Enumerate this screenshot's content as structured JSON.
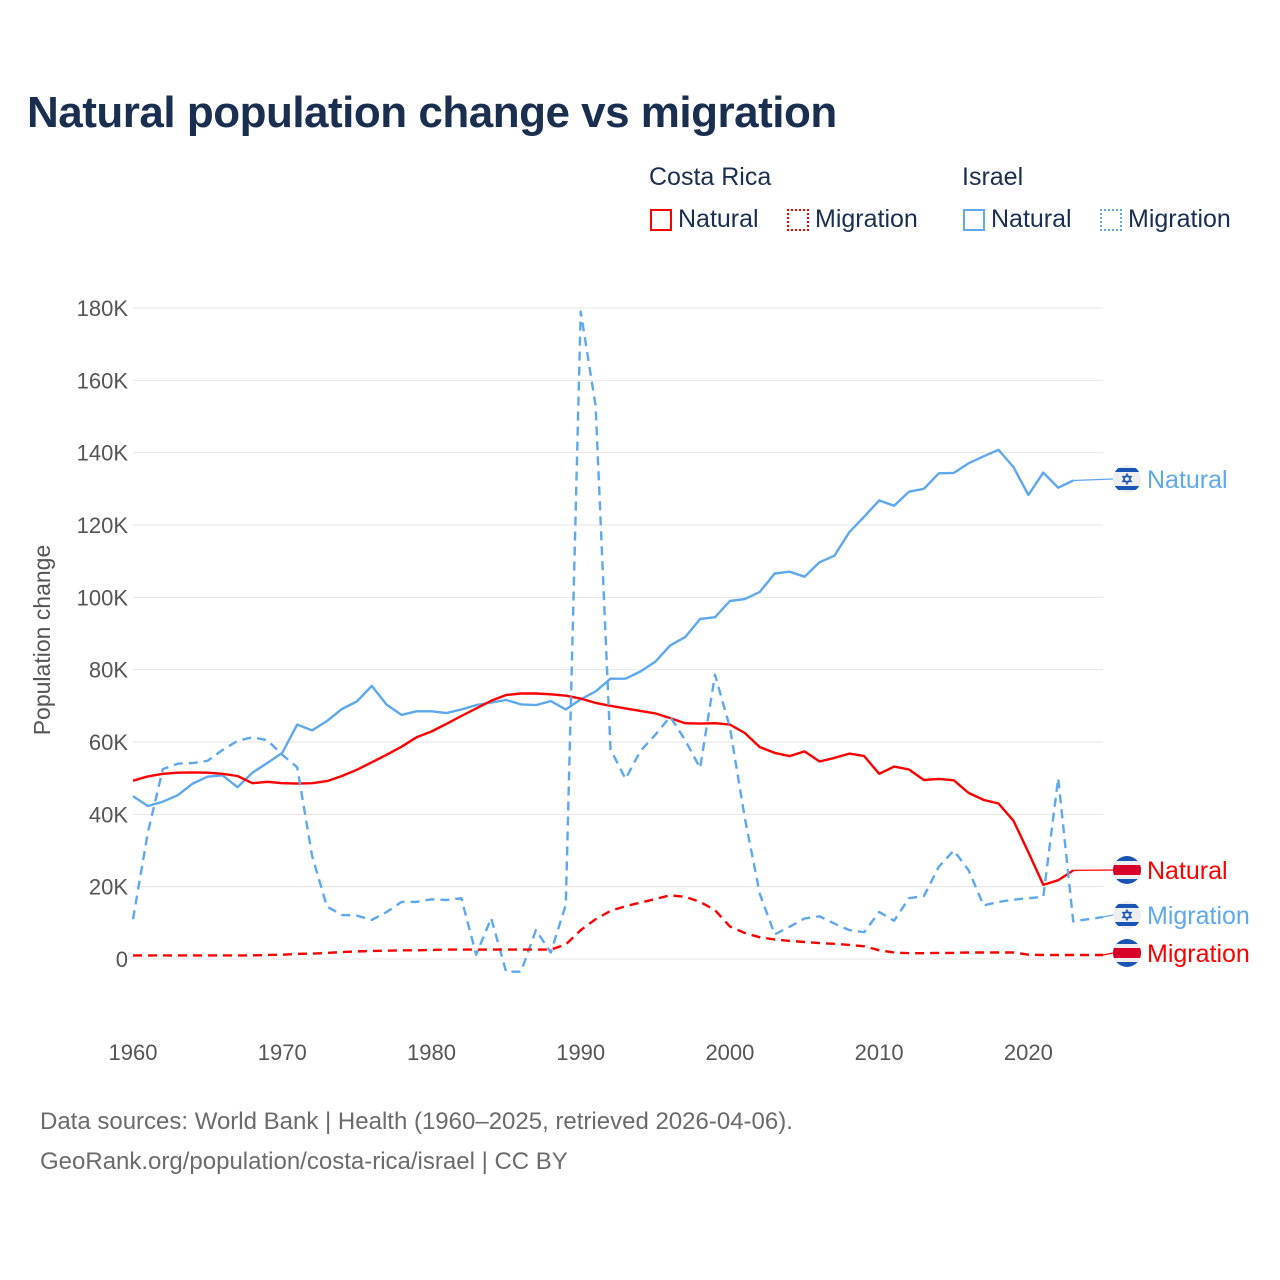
{
  "title": "Natural population change vs migration",
  "legend": {
    "groups": [
      {
        "name": "Costa Rica",
        "items": [
          "Natural",
          "Migration"
        ],
        "color": "#ff0000"
      },
      {
        "name": "Israel",
        "items": [
          "Natural",
          "Migration"
        ],
        "color": "#5ea8ee"
      }
    ]
  },
  "footer": {
    "line1": "Data sources: World Bank | Health (1960–2025, retrieved 2026-04-06).",
    "line2": "GeoRank.org/population/costa-rica/israel | CC BY"
  },
  "chart_data": {
    "type": "line",
    "title": "Natural population change vs migration",
    "xlabel": "",
    "ylabel": "Population change",
    "xlim": [
      1960,
      2025
    ],
    "ylim": [
      -10000,
      180000
    ],
    "x_ticks": [
      1960,
      1970,
      1980,
      1990,
      2000,
      2010,
      2020
    ],
    "x_tick_labels": [
      "1960",
      "1970",
      "1980",
      "1990",
      "2000",
      "2010",
      "2020"
    ],
    "y_ticks": [
      0,
      20000,
      40000,
      60000,
      80000,
      100000,
      120000,
      140000,
      160000,
      180000
    ],
    "y_tick_labels": [
      "0",
      "20K",
      "40K",
      "60K",
      "80K",
      "100K",
      "120K",
      "140K",
      "160K",
      "180K"
    ],
    "grid": true,
    "legend_position": "top-right",
    "series": [
      {
        "name": "Israel Natural",
        "country": "Israel",
        "label": "Natural",
        "color": "#5ea8ee",
        "dash": false,
        "start": 1960,
        "values": [
          45000,
          42300,
          43500,
          45300,
          48500,
          50400,
          50800,
          47500,
          51500,
          54200,
          57000,
          64800,
          63200,
          65800,
          69100,
          71200,
          75500,
          70300,
          67500,
          68500,
          68500,
          68000,
          69000,
          70200,
          70900,
          71600,
          70400,
          70200,
          71300,
          69000,
          71800,
          74000,
          77500,
          77500,
          79500,
          82200,
          86700,
          89000,
          94000,
          94500,
          99000,
          99500,
          101500,
          106600,
          107100,
          105700,
          109700,
          111500,
          118000,
          122300,
          126800,
          125300,
          129200,
          130000,
          134300,
          134400,
          137100,
          139000,
          140800,
          136000,
          128300,
          134500,
          130300,
          132300
        ]
      },
      {
        "name": "Costa Rica Natural",
        "country": "Costa Rica",
        "label": "Natural",
        "color": "#ff0000",
        "dash": false,
        "start": 1960,
        "values": [
          49300,
          50500,
          51200,
          51500,
          51600,
          51500,
          51200,
          50600,
          48600,
          49000,
          48600,
          48500,
          48600,
          49200,
          50600,
          52300,
          54400,
          56500,
          58700,
          61300,
          62900,
          65000,
          67200,
          69300,
          71400,
          73000,
          73400,
          73400,
          73200,
          72800,
          72000,
          70800,
          70000,
          69300,
          68600,
          67900,
          66600,
          65200,
          65100,
          65200,
          64800,
          62500,
          58600,
          57000,
          56100,
          57400,
          54600,
          55600,
          56800,
          56100,
          51200,
          53200,
          52400,
          49500,
          49800,
          49400,
          45900,
          44000,
          43000,
          38200,
          29500,
          20500,
          21800,
          24500
        ]
      },
      {
        "name": "Israel Migration",
        "country": "Israel",
        "label": "Migration",
        "color": "#5ea8ee",
        "dash": true,
        "start": 1960,
        "values": [
          11000,
          35000,
          52500,
          54000,
          54200,
          54800,
          57800,
          60300,
          61300,
          60500,
          56500,
          53000,
          28500,
          14500,
          12200,
          12000,
          10800,
          13000,
          15800,
          15800,
          16500,
          16300,
          16800,
          1200,
          11300,
          -3500,
          -3500,
          8000,
          1800,
          15000,
          179000,
          153000,
          58000,
          49800,
          57500,
          62000,
          67000,
          60500,
          52800,
          78600,
          64000,
          39000,
          18000,
          6800,
          8900,
          11200,
          11800,
          9800,
          8000,
          7400,
          13000,
          10600,
          16800,
          17400,
          25500,
          30000,
          24500,
          14800,
          15800,
          16400,
          16800,
          17200,
          50000,
          10400,
          11000,
          11600
        ]
      },
      {
        "name": "Costa Rica Migration",
        "country": "Costa Rica",
        "label": "Migration",
        "color": "#ff0000",
        "dash": true,
        "start": 1960,
        "values": [
          1000,
          1000,
          1000,
          1000,
          1000,
          1000,
          1000,
          1000,
          1000,
          1100,
          1200,
          1400,
          1500,
          1700,
          1900,
          2100,
          2200,
          2300,
          2400,
          2400,
          2500,
          2600,
          2600,
          2600,
          2600,
          2600,
          2600,
          2600,
          2600,
          4000,
          8000,
          11000,
          13300,
          14600,
          15600,
          16600,
          17600,
          17200,
          15800,
          13500,
          9000,
          7200,
          6000,
          5400,
          5000,
          4700,
          4400,
          4200,
          3900,
          3500,
          2400,
          1800,
          1600,
          1600,
          1700,
          1700,
          1800,
          1800,
          1800,
          1800,
          1200,
          1100,
          1100,
          1100,
          1100,
          1100
        ]
      }
    ],
    "end_labels": [
      {
        "text": "Natural",
        "country": "Israel",
        "value": 132300
      },
      {
        "text": "Natural",
        "country": "Costa Rica",
        "value": 24500
      },
      {
        "text": "Migration",
        "country": "Israel",
        "value": 11600
      },
      {
        "text": "Migration",
        "country": "Costa Rica",
        "value": 1100
      }
    ]
  }
}
